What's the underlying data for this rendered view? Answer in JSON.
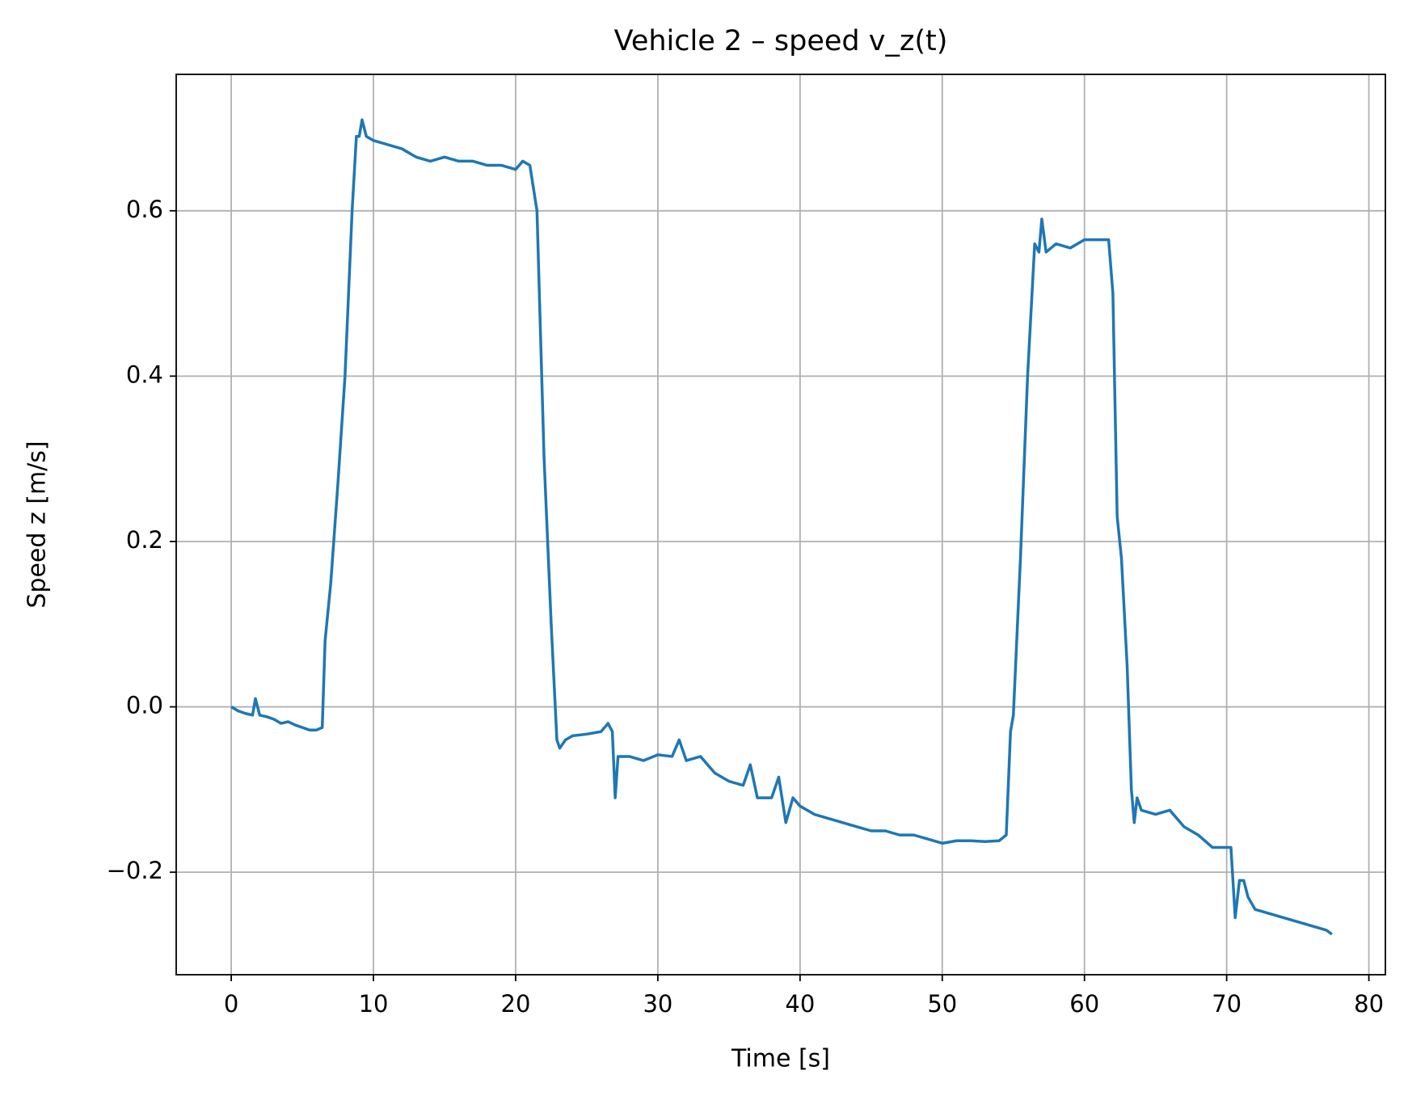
{
  "chart_data": {
    "type": "line",
    "title": "Vehicle 2 – speed v_z(t)",
    "x_label": "Time [s]",
    "y_label": "Speed z [m/s]",
    "x": [
      0,
      0.5,
      1,
      1.5,
      1.7,
      2,
      2.5,
      3,
      3.5,
      4,
      4.5,
      5,
      5.5,
      6,
      6.4,
      6.6,
      7,
      7.5,
      8,
      8.5,
      8.8,
      9,
      9.2,
      9.5,
      10,
      11,
      12,
      13,
      14,
      15,
      16,
      17,
      18,
      19,
      20,
      20.5,
      21,
      21.5,
      22,
      22.5,
      22.9,
      23.1,
      23.5,
      24,
      25,
      26,
      26.5,
      26.8,
      27,
      27.2,
      28,
      29,
      30,
      31,
      31.5,
      32,
      33,
      34,
      35,
      36,
      36.5,
      37,
      38,
      38.5,
      39,
      39.5,
      40,
      41,
      42,
      43,
      44,
      45,
      46,
      47,
      48,
      49,
      50,
      51,
      52,
      53,
      54,
      54.5,
      54.8,
      55,
      55.5,
      56,
      56.5,
      56.8,
      57,
      57.3,
      58,
      59,
      60,
      61,
      61.7,
      62,
      62.3,
      62.6,
      63,
      63.3,
      63.5,
      63.7,
      64,
      65,
      66,
      67,
      68,
      69,
      70,
      70.3,
      70.6,
      70.9,
      71.2,
      71.5,
      72,
      73,
      74,
      75,
      76,
      77,
      77.4
    ],
    "series": [
      {
        "name": "v_z",
        "color": "#1f77b4",
        "values": [
          0.0,
          -0.005,
          -0.008,
          -0.01,
          0.01,
          -0.01,
          -0.012,
          -0.015,
          -0.02,
          -0.018,
          -0.022,
          -0.025,
          -0.028,
          -0.028,
          -0.025,
          0.08,
          0.15,
          0.27,
          0.4,
          0.6,
          0.69,
          0.69,
          0.71,
          0.69,
          0.685,
          0.68,
          0.675,
          0.665,
          0.66,
          0.665,
          0.66,
          0.66,
          0.655,
          0.655,
          0.65,
          0.66,
          0.655,
          0.6,
          0.3,
          0.1,
          -0.04,
          -0.05,
          -0.04,
          -0.035,
          -0.033,
          -0.03,
          -0.02,
          -0.03,
          -0.11,
          -0.06,
          -0.06,
          -0.065,
          -0.058,
          -0.06,
          -0.04,
          -0.065,
          -0.06,
          -0.08,
          -0.09,
          -0.095,
          -0.07,
          -0.11,
          -0.11,
          -0.085,
          -0.14,
          -0.11,
          -0.12,
          -0.13,
          -0.135,
          -0.14,
          -0.145,
          -0.15,
          -0.15,
          -0.155,
          -0.155,
          -0.16,
          -0.165,
          -0.162,
          -0.162,
          -0.163,
          -0.162,
          -0.155,
          -0.03,
          -0.01,
          0.18,
          0.4,
          0.56,
          0.55,
          0.59,
          0.55,
          0.56,
          0.555,
          0.565,
          0.565,
          0.565,
          0.5,
          0.23,
          0.18,
          0.05,
          -0.1,
          -0.14,
          -0.11,
          -0.125,
          -0.13,
          -0.125,
          -0.145,
          -0.155,
          -0.17,
          -0.17,
          -0.17,
          -0.255,
          -0.21,
          -0.21,
          -0.23,
          -0.245,
          -0.25,
          -0.255,
          -0.26,
          -0.265,
          -0.27,
          -0.275
        ]
      }
    ],
    "xlim": [
      -3.87,
      81.16
    ],
    "ylim": [
      -0.324,
      0.765
    ],
    "xticks": [
      0,
      10,
      20,
      30,
      40,
      50,
      60,
      70,
      80
    ],
    "yticks": [
      {
        "value": -0.2,
        "label": "−0.2"
      },
      {
        "value": 0,
        "label": "0.0"
      },
      0.2,
      0.4,
      0.6
    ],
    "grid": true
  }
}
